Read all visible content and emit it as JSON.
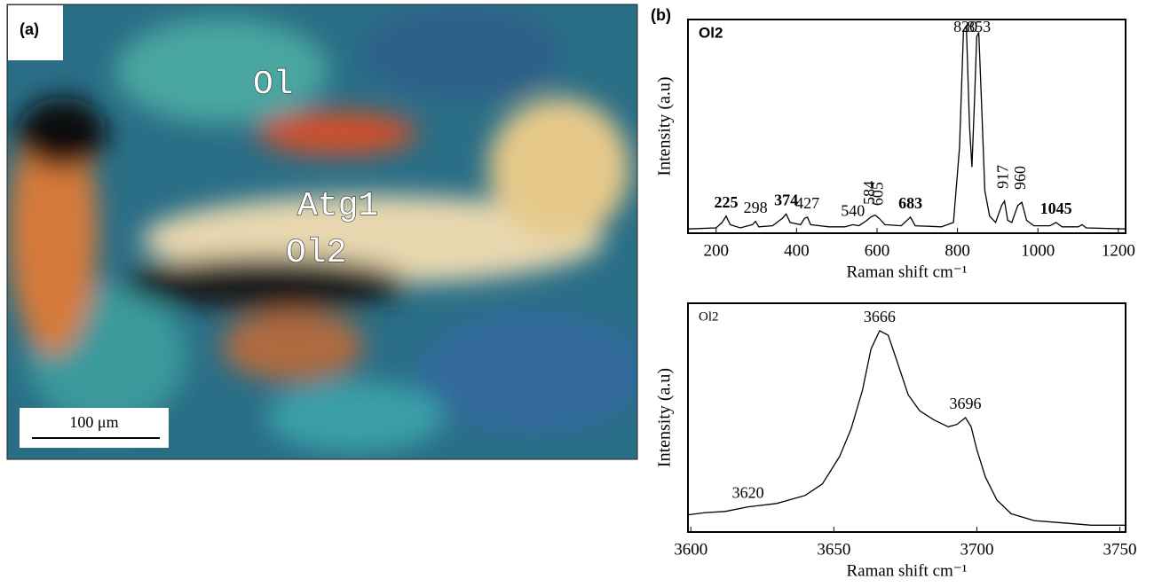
{
  "figure": {
    "panel_a": {
      "label": "(a)",
      "annotations": [
        "Ol",
        "Atg1",
        "Ol2"
      ],
      "scale_bar": "100 μm"
    },
    "panel_b": {
      "label": "(b)"
    }
  },
  "chart_data": [
    {
      "type": "line",
      "title": "Ol2",
      "xlabel": "Raman shift cm⁻¹",
      "ylabel": "Intensity (a.u)",
      "x": [
        130,
        200,
        215,
        225,
        235,
        260,
        290,
        298,
        306,
        340,
        365,
        374,
        384,
        410,
        420,
        427,
        435,
        480,
        520,
        540,
        555,
        575,
        584,
        595,
        605,
        620,
        660,
        683,
        695,
        760,
        790,
        805,
        815,
        822,
        830,
        836,
        842,
        848,
        853,
        860,
        868,
        880,
        895,
        910,
        917,
        925,
        935,
        950,
        960,
        972,
        990,
        1030,
        1045,
        1060,
        1100,
        1110,
        1120,
        1218
      ],
      "series": [
        {
          "color": "#000000",
          "values": [
            2,
            2.5,
            5,
            8,
            4,
            2.5,
            4,
            5.5,
            3,
            3.5,
            7,
            9,
            5,
            4,
            7,
            7.5,
            4,
            3,
            3,
            4,
            3.5,
            6,
            7.5,
            8.5,
            7,
            4,
            3.5,
            7.5,
            3.5,
            3,
            5,
            40,
            95,
            97,
            50,
            31,
            60,
            92,
            94,
            60,
            20,
            8,
            5,
            13,
            15,
            6,
            5,
            13,
            14.5,
            6,
            3.5,
            3.5,
            5,
            3,
            3,
            4,
            2.5,
            2
          ]
        }
      ],
      "peak_labels": [
        225,
        298,
        374,
        427,
        540,
        584,
        605,
        683,
        820,
        853,
        917,
        960,
        1045
      ],
      "xlim": [
        130,
        1218
      ],
      "ylim": [
        0,
        100
      ],
      "xticks": [
        200,
        400,
        600,
        800,
        1000,
        1200
      ]
    },
    {
      "type": "line",
      "title": "Ol2",
      "xlabel": "Raman shift cm⁻¹",
      "ylabel": "Intensity (a.u)",
      "x": [
        3599,
        3605,
        3612,
        3620,
        3630,
        3640,
        3646,
        3652,
        3656,
        3660,
        3663,
        3666,
        3669,
        3672,
        3676,
        3680,
        3685,
        3690,
        3693,
        3696,
        3698,
        3700,
        3703,
        3707,
        3712,
        3720,
        3730,
        3740,
        3752
      ],
      "series": [
        {
          "color": "#000000",
          "values": [
            7.5,
            8.5,
            9,
            11,
            12.5,
            16,
            21,
            33,
            45,
            62,
            80,
            88,
            86,
            75,
            60,
            53,
            49,
            46,
            47,
            50,
            46,
            36,
            24,
            14,
            8,
            5,
            4,
            3,
            3
          ]
        }
      ],
      "peak_labels": [
        3620,
        3666,
        3696
      ],
      "xlim": [
        3599,
        3752
      ],
      "ylim": [
        0,
        100
      ],
      "xticks": [
        3600,
        3650,
        3700,
        3750
      ]
    }
  ]
}
